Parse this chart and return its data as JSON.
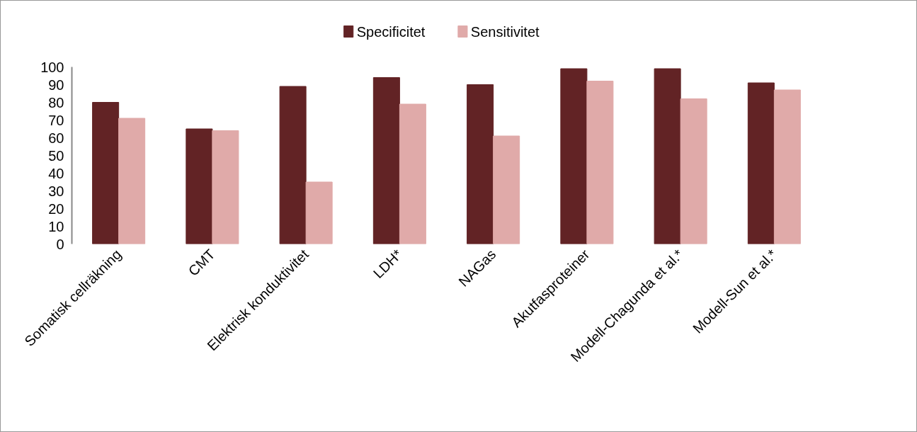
{
  "chart_data": {
    "type": "bar",
    "categories": [
      "Somatisk cellräkning",
      "CMT",
      "Elektrisk konduktivitet",
      "LDH*",
      "NAGas",
      "Akutfasproteiner",
      "Modell-Chagunda et al.*",
      "Modell-Sun et al.*"
    ],
    "series": [
      {
        "name": "Specificitet",
        "color": "#622325",
        "values": [
          80,
          65,
          89,
          94,
          90,
          99,
          99,
          91
        ]
      },
      {
        "name": "Sensitivitet",
        "color": "#e0aaa9",
        "values": [
          71,
          64,
          35,
          79,
          61,
          92,
          82,
          87
        ]
      }
    ],
    "ylim": [
      0,
      100
    ],
    "yticks": [
      0,
      10,
      20,
      30,
      40,
      50,
      60,
      70,
      80,
      90,
      100
    ],
    "grid": false,
    "legend": "top"
  }
}
